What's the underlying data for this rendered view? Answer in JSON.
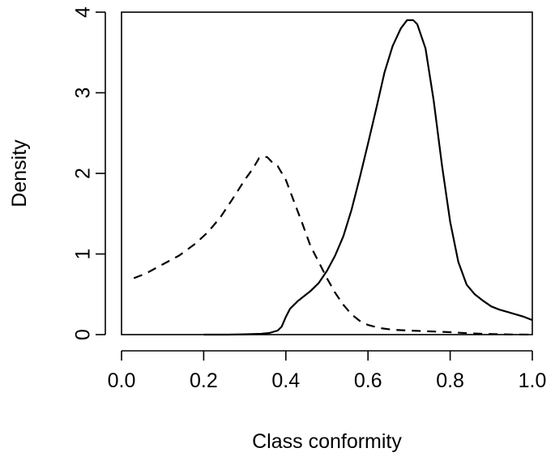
{
  "chart_data": {
    "type": "line",
    "title": "",
    "xlabel": "Class conformity",
    "ylabel": "Density",
    "xlim": [
      0.0,
      1.0
    ],
    "ylim": [
      0,
      4
    ],
    "x_ticks": [
      "0.0",
      "0.2",
      "0.4",
      "0.6",
      "0.8",
      "1.0"
    ],
    "y_ticks": [
      "0",
      "1",
      "2",
      "3",
      "4"
    ],
    "grid": false,
    "legend": "none",
    "series": [
      {
        "style": "dashed",
        "color": "#000000",
        "points": [
          [
            0.03,
            0.7
          ],
          [
            0.06,
            0.76
          ],
          [
            0.1,
            0.87
          ],
          [
            0.14,
            0.98
          ],
          [
            0.18,
            1.13
          ],
          [
            0.21,
            1.27
          ],
          [
            0.24,
            1.45
          ],
          [
            0.27,
            1.68
          ],
          [
            0.3,
            1.92
          ],
          [
            0.32,
            2.06
          ],
          [
            0.335,
            2.19
          ],
          [
            0.345,
            2.21
          ],
          [
            0.355,
            2.2
          ],
          [
            0.37,
            2.12
          ],
          [
            0.38,
            2.09
          ],
          [
            0.4,
            1.92
          ],
          [
            0.42,
            1.65
          ],
          [
            0.44,
            1.38
          ],
          [
            0.46,
            1.1
          ],
          [
            0.48,
            0.9
          ],
          [
            0.5,
            0.7
          ],
          [
            0.52,
            0.52
          ],
          [
            0.54,
            0.37
          ],
          [
            0.56,
            0.25
          ],
          [
            0.58,
            0.17
          ],
          [
            0.6,
            0.12
          ],
          [
            0.63,
            0.08
          ],
          [
            0.66,
            0.06
          ],
          [
            0.7,
            0.05
          ],
          [
            0.75,
            0.04
          ],
          [
            0.8,
            0.03
          ],
          [
            0.85,
            0.015
          ],
          [
            0.88,
            0.01
          ],
          [
            0.92,
            0.005
          ],
          [
            0.95,
            0.002
          ],
          [
            1.0,
            0.0
          ]
        ]
      },
      {
        "style": "solid",
        "color": "#000000",
        "points": [
          [
            0.2,
            0.0
          ],
          [
            0.26,
            0.0
          ],
          [
            0.3,
            0.004
          ],
          [
            0.34,
            0.01
          ],
          [
            0.36,
            0.02
          ],
          [
            0.38,
            0.05
          ],
          [
            0.39,
            0.1
          ],
          [
            0.4,
            0.22
          ],
          [
            0.41,
            0.32
          ],
          [
            0.43,
            0.42
          ],
          [
            0.45,
            0.5
          ],
          [
            0.46,
            0.54
          ],
          [
            0.48,
            0.64
          ],
          [
            0.5,
            0.79
          ],
          [
            0.52,
            0.98
          ],
          [
            0.54,
            1.22
          ],
          [
            0.56,
            1.55
          ],
          [
            0.58,
            1.95
          ],
          [
            0.6,
            2.37
          ],
          [
            0.62,
            2.8
          ],
          [
            0.64,
            3.25
          ],
          [
            0.66,
            3.58
          ],
          [
            0.68,
            3.8
          ],
          [
            0.695,
            3.9
          ],
          [
            0.71,
            3.9
          ],
          [
            0.72,
            3.85
          ],
          [
            0.74,
            3.55
          ],
          [
            0.76,
            2.9
          ],
          [
            0.78,
            2.1
          ],
          [
            0.8,
            1.4
          ],
          [
            0.82,
            0.9
          ],
          [
            0.84,
            0.62
          ],
          [
            0.86,
            0.5
          ],
          [
            0.88,
            0.42
          ],
          [
            0.9,
            0.35
          ],
          [
            0.92,
            0.31
          ],
          [
            0.94,
            0.28
          ],
          [
            0.96,
            0.25
          ],
          [
            0.98,
            0.22
          ],
          [
            1.0,
            0.18
          ]
        ]
      }
    ]
  }
}
